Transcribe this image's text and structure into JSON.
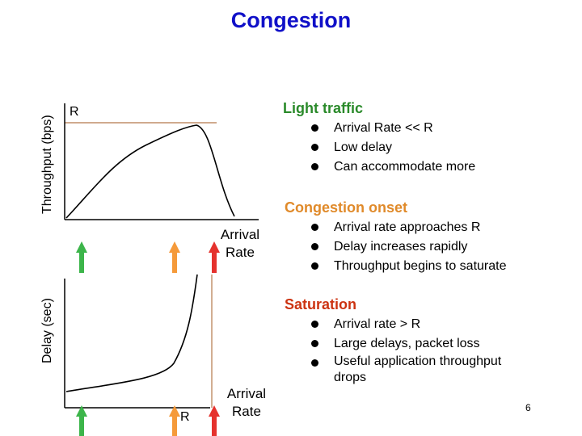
{
  "title": "Congestion",
  "throughput_axis_label": "Throughput (bps)",
  "delay_axis_label": "Delay (sec)",
  "r_label": "R",
  "r_label_bottom": "R",
  "arrival_rate_label_top": "Arrival\nRate",
  "arrival_rate_label_bottom": "Arrival\nRate",
  "page_number": "6",
  "colors": {
    "title": "#1010c8",
    "light_traffic": "#2a8a2a",
    "congestion_onset": "#e08a2a",
    "saturation": "#cc3311",
    "arrow_green": "#3cb54a",
    "arrow_orange": "#f59a3a",
    "arrow_red": "#e5322d",
    "r_line": "#b5784a"
  },
  "sections": [
    {
      "heading": "Light traffic",
      "bullets": [
        "Arrival Rate << R",
        "Low delay",
        "Can accommodate more"
      ]
    },
    {
      "heading": "Congestion onset",
      "bullets": [
        "Arrival rate approaches R",
        "Delay increases rapidly",
        "Throughput begins to saturate"
      ]
    },
    {
      "heading": "Saturation",
      "bullets": [
        "Arrival rate > R",
        "Large delays, packet loss",
        "Useful application throughput drops"
      ]
    }
  ]
}
